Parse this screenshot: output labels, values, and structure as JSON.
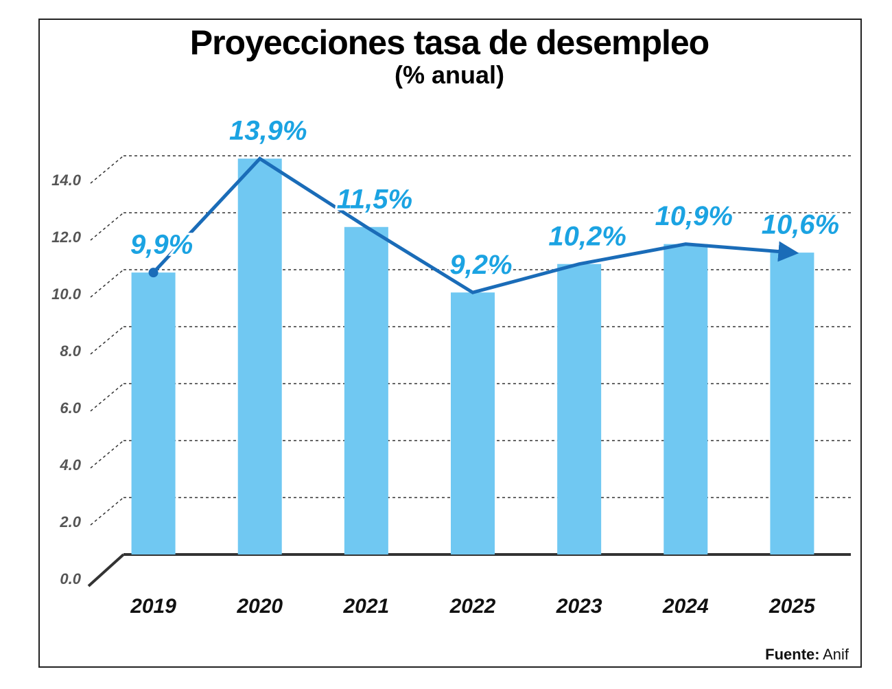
{
  "chart_data": {
    "type": "bar",
    "title": "Proyecciones tasa de desempleo",
    "subtitle": "(% anual)",
    "categories": [
      "2019",
      "2020",
      "2021",
      "2022",
      "2023",
      "2024",
      "2025"
    ],
    "values": [
      9.9,
      13.9,
      11.5,
      9.2,
      10.2,
      10.9,
      10.6
    ],
    "value_labels": [
      "9,9%",
      "13,9%",
      "11,5%",
      "9,2%",
      "10,2%",
      "10,9%",
      "10,6%"
    ],
    "color": "#70c8f2",
    "line_color": "#1a6cb8",
    "label_color": "#1ba3e2",
    "ylim": [
      0,
      15
    ],
    "yticks": [
      {
        "value": 0,
        "label": "0.0"
      },
      {
        "value": 2,
        "label": "2.0"
      },
      {
        "value": 4,
        "label": "4.0"
      },
      {
        "value": 6,
        "label": "6.0"
      },
      {
        "value": 8,
        "label": "8.0"
      },
      {
        "value": 10,
        "label": "10.0"
      },
      {
        "value": 12,
        "label": "12.0"
      },
      {
        "value": 14,
        "label": "14.0"
      }
    ],
    "grid": true,
    "source": {
      "label": "Fuente:",
      "text": "Anif"
    }
  }
}
